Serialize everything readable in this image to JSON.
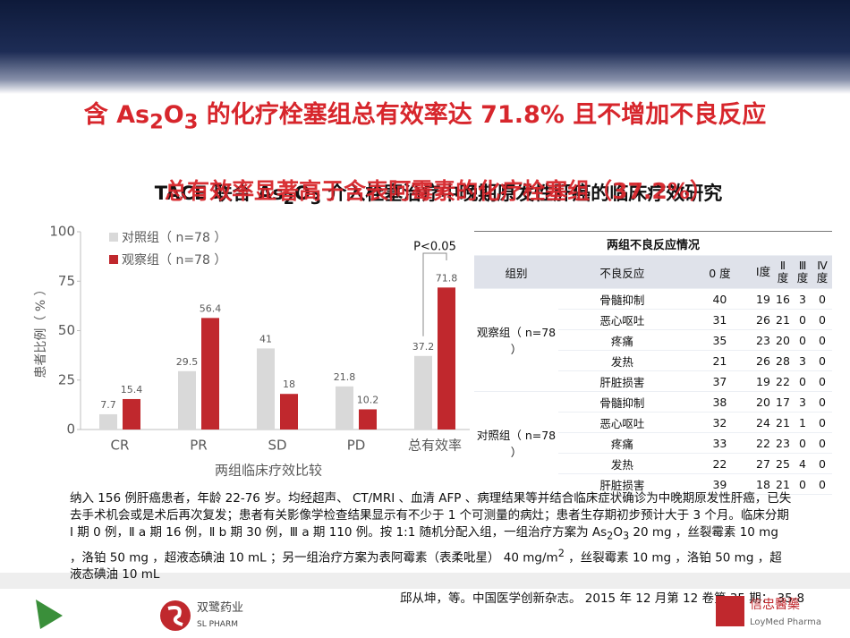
{
  "header": {
    "title_parts": [
      "含 As",
      "2",
      "O",
      "3",
      " 的化疗栓塞组总有效率达 71.8% 且不增加不良反应"
    ],
    "subtitle": "总有效率显著高于含表阿霉素的化疗栓塞组（37.2%）",
    "study_title_parts": [
      "TACE 联合 As",
      "2",
      "O",
      "3",
      " 介入栓塞治疗中晚期原发性肝癌的临床疗效研究"
    ]
  },
  "chart_data": {
    "type": "bar",
    "x_label": "两组临床疗效比较",
    "y_label": "患者比例（ % ）",
    "categories": [
      "CR",
      "PR",
      "SD",
      "PD",
      "总有效率"
    ],
    "series": [
      {
        "name": "对照组（ n=78 ）",
        "color": "#d9d9d9",
        "values": [
          7.7,
          29.5,
          41,
          21.8,
          37.2
        ]
      },
      {
        "name": "观察组（ n=78 ）",
        "color": "#c0282d",
        "values": [
          15.4,
          56.4,
          18,
          10.2,
          71.8
        ]
      }
    ],
    "ylim": [
      0,
      100
    ],
    "yticks": [
      0,
      25,
      50,
      75,
      100
    ],
    "annotation": "P<0.05"
  },
  "table": {
    "title": "两组不良反应情况",
    "header": [
      "组别",
      "不良反应",
      "0 度",
      "Ⅰ度",
      "Ⅱ度",
      "Ⅲ度",
      "Ⅳ度"
    ],
    "groups": [
      {
        "name": "观察组（ n=78 ）",
        "rows": [
          [
            "骨髓抑制",
            40,
            19,
            16,
            3,
            0
          ],
          [
            "恶心呕吐",
            31,
            26,
            21,
            0,
            0
          ],
          [
            "疼痛",
            35,
            23,
            20,
            0,
            0
          ],
          [
            "发热",
            21,
            26,
            28,
            3,
            0
          ],
          [
            "肝脏损害",
            37,
            19,
            22,
            0,
            0
          ]
        ]
      },
      {
        "name": "对照组（ n=78 ）",
        "rows": [
          [
            "骨髓抑制",
            38,
            20,
            17,
            3,
            0
          ],
          [
            "恶心呕吐",
            32,
            24,
            21,
            1,
            0
          ],
          [
            "疼痛",
            33,
            22,
            23,
            0,
            0
          ],
          [
            "发热",
            22,
            27,
            25,
            4,
            0
          ],
          [
            "肝脏损害",
            39,
            18,
            21,
            0,
            0
          ]
        ]
      }
    ]
  },
  "paragraph": {
    "parts": [
      "纳入 156 例肝癌患者，年龄 22-76 岁。均经超声、 CT/MRI 、血清 AFP 、病理结果等并结合临床症状确诊为中晚期原发性肝癌，已失去手术机会或是术后再次复发；患者有关影像学检查结果显示有不少于 1 个可测量的病灶；患者生存期初步预计大于 3 个月。临床分期 Ⅰ 期 0 例，Ⅱ a 期 16 例，Ⅱ b 期 30 例，Ⅲ a 期 110 例。按 1:1 随机分配入组，一组治疗方案为 As",
      {
        "sub": "2"
      },
      "O",
      {
        "sub": "3"
      },
      " 20 mg ，丝裂霉素 10 mg ，洛铂 50 mg ，超液态碘油 10 mL ；另一组治疗方案为表阿霉素（表柔吡星） 40 mg/m",
      {
        "sup": "2"
      },
      " ，丝裂霉素 10 mg ，洛铂 50 mg ，超液态碘油 10 mL"
    ]
  },
  "citation": "邱从坤，等。中国医学创新杂志。 2015 年 12 月第 12 卷第 35 期： 35-8",
  "logos": {
    "sl_name": "双鹭药业",
    "sl_en": "SL PHARM",
    "loymed_name": "信忠醫藥",
    "loymed_en": "LoyMed Pharma"
  }
}
